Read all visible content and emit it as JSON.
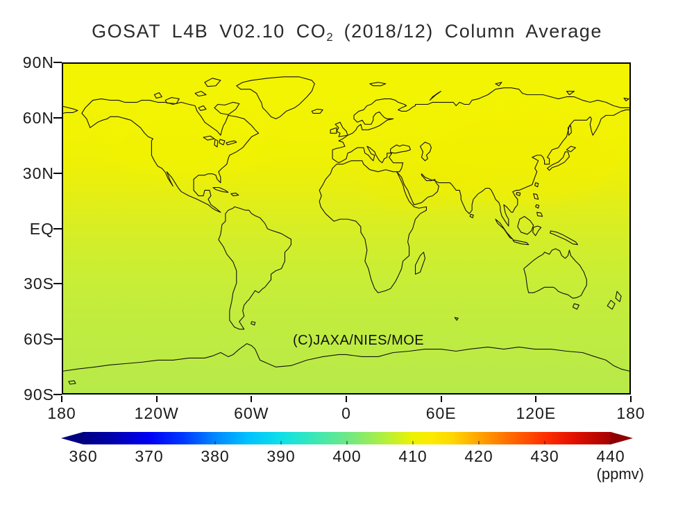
{
  "title": {
    "pre": "GOSAT L4B V02.10 CO",
    "sub": "2",
    "post": " (2018/12) Column Average"
  },
  "map": {
    "lat_labels": [
      "90N",
      "60N",
      "30N",
      "EQ",
      "30S",
      "60S",
      "90S"
    ],
    "lon_labels": [
      "180",
      "120W",
      "60W",
      "0",
      "60E",
      "120E",
      "180"
    ],
    "credit": "(C)JAXA/NIES/MOE"
  },
  "colorbar": {
    "tick_labels": [
      "360",
      "370",
      "380",
      "390",
      "400",
      "410",
      "420",
      "430",
      "440"
    ],
    "unit": "(ppmv)",
    "low_color": "#000085",
    "high_color": "#a50000"
  },
  "chart_data": {
    "type": "heatmap",
    "title": "GOSAT L4B V02.10 CO2 (2018/12) Column Average",
    "projection": "equirectangular",
    "x": {
      "label": "longitude",
      "ticks": [
        "180",
        "120W",
        "60W",
        "0",
        "60E",
        "120E",
        "180"
      ],
      "range_deg": [
        -180,
        180
      ]
    },
    "y": {
      "label": "latitude",
      "ticks": [
        "90N",
        "60N",
        "30N",
        "EQ",
        "30S",
        "60S",
        "90S"
      ],
      "range_deg": [
        -90,
        90
      ]
    },
    "colorbar": {
      "unit": "ppmv",
      "min": 360,
      "max": 440,
      "ticks": [
        360,
        370,
        380,
        390,
        400,
        410,
        420,
        430,
        440
      ],
      "style": "rainbow-with-end-arrows",
      "legend_position": "bottom"
    },
    "zonal_mean_xco2_ppmv": [
      {
        "latitude": "60N-90N",
        "value": 410.5
      },
      {
        "latitude": "30N-60N",
        "value": 410.0
      },
      {
        "latitude": "EQ-30N",
        "value": 408.5
      },
      {
        "latitude": "30S-EQ",
        "value": 406.5
      },
      {
        "latitude": "60S-30S",
        "value": 405.5
      },
      {
        "latitude": "90S-60S",
        "value": 405.0
      }
    ],
    "annotation": "(C)JAXA/NIES/MOE",
    "grid": false
  }
}
